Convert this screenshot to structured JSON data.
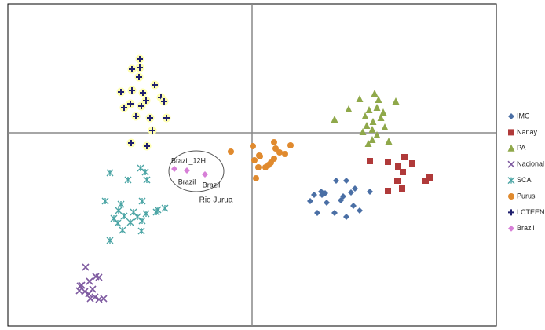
{
  "chart_data": {
    "type": "scatter",
    "xlim": [
      -3.11,
      3.11
    ],
    "ylim": [
      -2.46,
      1.64
    ],
    "legend": "right",
    "series": [
      {
        "name": "IMC",
        "color": "#4a6fa5",
        "marker": "diamond",
        "x": [
          1.07,
          1.2,
          1.31,
          0.88,
          0.93,
          0.79,
          0.89,
          1.16,
          1.26,
          1.5,
          0.74,
          0.95,
          1.13,
          1.29,
          1.05,
          1.37,
          0.83,
          1.2
        ],
        "values": [
          -0.61,
          -0.61,
          -0.71,
          -0.75,
          -0.77,
          -0.79,
          -0.79,
          -0.81,
          -0.76,
          -0.75,
          -0.87,
          -0.89,
          -0.86,
          -0.93,
          -1.02,
          -0.99,
          -1.02,
          -1.07
        ]
      },
      {
        "name": "Nanay",
        "color": "#b03a3a",
        "marker": "square",
        "x": [
          1.5,
          1.94,
          1.73,
          2.04,
          1.86,
          1.92,
          2.26,
          2.21,
          1.85,
          1.91,
          1.73
        ],
        "values": [
          -0.36,
          -0.31,
          -0.37,
          -0.39,
          -0.43,
          -0.5,
          -0.57,
          -0.61,
          -0.61,
          -0.71,
          -0.74
        ]
      },
      {
        "name": "PA",
        "color": "#8fa84a",
        "marker": "triangle",
        "x": [
          1.37,
          1.56,
          1.61,
          1.83,
          1.23,
          1.49,
          1.59,
          1.67,
          1.05,
          1.44,
          1.54,
          1.64,
          1.46,
          1.69,
          1.41,
          1.53,
          1.59,
          1.53,
          1.48,
          1.74
        ],
        "values": [
          0.43,
          0.5,
          0.42,
          0.4,
          0.3,
          0.29,
          0.32,
          0.26,
          0.17,
          0.21,
          0.14,
          0.19,
          0.09,
          0.07,
          0.01,
          0.04,
          -0.03,
          -0.09,
          -0.14,
          -0.11
        ]
      },
      {
        "name": "Nacional",
        "color": "#7e5aa0",
        "marker": "x",
        "x": [
          -2.12,
          -1.99,
          -2.17,
          -2.07,
          -1.95,
          -2.13,
          -2.03,
          -2.2,
          -2.08,
          -2.0,
          -1.95,
          -1.89,
          -2.06,
          -2.19
        ],
        "values": [
          -1.71,
          -1.83,
          -1.94,
          -1.89,
          -1.84,
          -2.02,
          -1.99,
          -2.01,
          -2.05,
          -2.09,
          -2.12,
          -2.11,
          -2.11,
          -1.95
        ]
      },
      {
        "name": "SCA",
        "color": "#4ba5a5",
        "marker": "star",
        "x": [
          -1.81,
          -1.42,
          -1.36,
          -1.58,
          -1.34,
          -1.87,
          -1.67,
          -1.4,
          -1.11,
          -1.22,
          -1.7,
          -1.51,
          -1.35,
          -1.63,
          -1.46,
          -1.71,
          -1.55,
          -1.4,
          -1.41,
          -1.65,
          -1.81,
          -1.76,
          -1.2
        ],
        "values": [
          -0.51,
          -0.45,
          -0.5,
          -0.6,
          -0.6,
          -0.87,
          -0.91,
          -0.87,
          -0.96,
          -1.01,
          -0.99,
          -1.01,
          -1.03,
          -1.06,
          -1.07,
          -1.15,
          -1.14,
          -1.12,
          -1.25,
          -1.24,
          -1.37,
          -1.09,
          -0.98
        ]
      },
      {
        "name": "Purus",
        "color": "#e08a2e",
        "marker": "circle",
        "x": [
          -0.27,
          0.01,
          0.28,
          0.49,
          0.3,
          0.35,
          0.1,
          0.03,
          0.24,
          0.17,
          0.08,
          0.09,
          0.28,
          0.21,
          0.05,
          0.42
        ],
        "values": [
          -0.24,
          -0.17,
          -0.12,
          -0.16,
          -0.2,
          -0.25,
          -0.3,
          -0.35,
          -0.38,
          -0.44,
          -0.44,
          -0.29,
          -0.33,
          -0.41,
          -0.58,
          -0.27
        ]
      },
      {
        "name": "LCTEEN",
        "color": "#1f1f6e",
        "marker": "plus",
        "x": [
          -1.43,
          -1.43,
          -1.53,
          -1.44,
          -1.24,
          -1.67,
          -1.53,
          -1.39,
          -1.16,
          -1.12,
          -1.55,
          -1.35,
          -1.63,
          -1.41,
          -1.09,
          -1.48,
          -1.3,
          -1.27,
          -1.54,
          -1.34
        ],
        "values": [
          0.94,
          0.83,
          0.81,
          0.71,
          0.61,
          0.52,
          0.54,
          0.51,
          0.45,
          0.4,
          0.37,
          0.41,
          0.32,
          0.34,
          0.19,
          0.21,
          0.19,
          0.03,
          -0.13,
          -0.17
        ]
      },
      {
        "name": "Brazil",
        "color": "#d77fd7",
        "marker": "diamond",
        "x": [
          -0.99,
          -0.83,
          -0.6
        ],
        "values": [
          -0.46,
          -0.48,
          -0.53
        ]
      }
    ],
    "annotations": [
      "Brazil_12H",
      "Brazil",
      "Brazil",
      "Rio Jurua"
    ]
  }
}
